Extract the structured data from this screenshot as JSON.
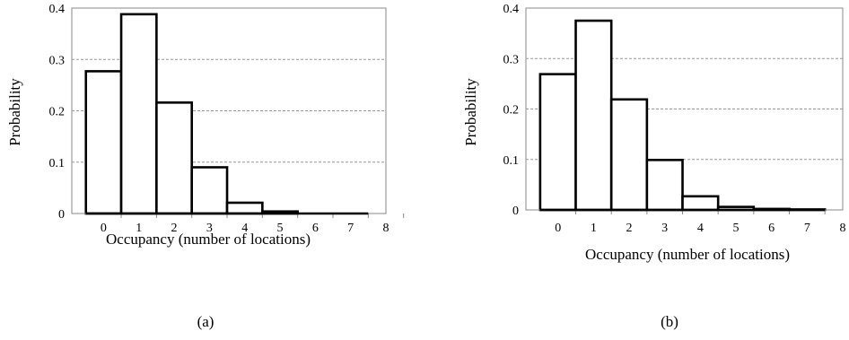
{
  "chart_data": [
    {
      "type": "bar",
      "caption": "(a)",
      "xlabel": "Occupancy (number of locations)",
      "ylabel": "Probability",
      "x_ticks": [
        "0",
        "1",
        "2",
        "3",
        "4",
        "5",
        "6",
        "7",
        "8"
      ],
      "y_ticks": [
        "0",
        "0.1",
        "0.2",
        "0.3",
        "0.4"
      ],
      "xlim": [
        -0.9,
        8
      ],
      "ylim": [
        0,
        0.4
      ],
      "grid": "horizontal-dashed",
      "legend": "none",
      "x": [
        0,
        1,
        2,
        3,
        4,
        5,
        6,
        7
      ],
      "values": [
        0.277,
        0.388,
        0.216,
        0.09,
        0.021,
        0.004,
        0.0,
        0.0
      ],
      "bar_color": "#ffffff",
      "edge_color": "#000000",
      "grid_color": "#999999"
    },
    {
      "type": "bar",
      "caption": "(b)",
      "xlabel": "Occupancy (number of locations)",
      "ylabel": "Probability",
      "x_ticks": [
        "0",
        "1",
        "2",
        "3",
        "4",
        "5",
        "6",
        "7",
        "8"
      ],
      "y_ticks": [
        "0",
        "0.1",
        "0.2",
        "0.3",
        "0.4"
      ],
      "xlim": [
        -0.9,
        8
      ],
      "ylim": [
        0,
        0.4
      ],
      "grid": "horizontal-dashed",
      "legend": "none",
      "x": [
        0,
        1,
        2,
        3,
        4,
        5,
        6,
        7
      ],
      "values": [
        0.269,
        0.375,
        0.219,
        0.099,
        0.027,
        0.006,
        0.002,
        0.001
      ],
      "bar_color": "#ffffff",
      "edge_color": "#000000",
      "grid_color": "#999999"
    }
  ]
}
